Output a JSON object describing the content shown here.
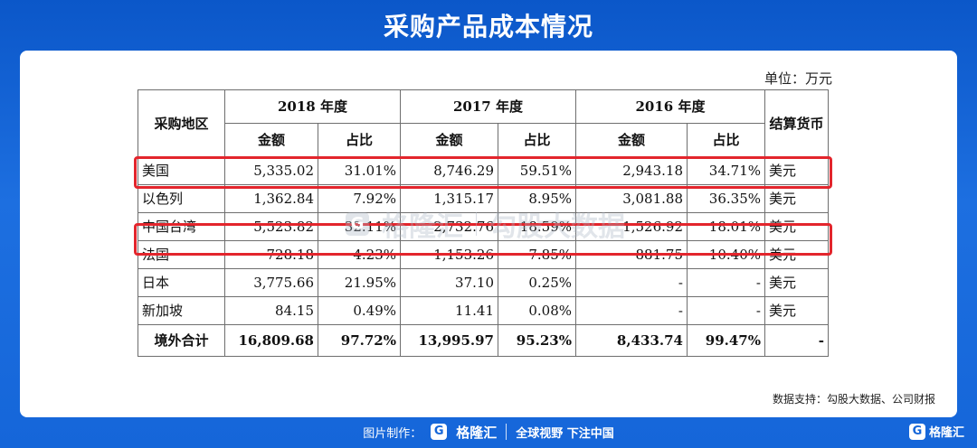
{
  "page": {
    "title": "采购产品成本情况"
  },
  "unit_label": "单位：万元",
  "table": {
    "header": {
      "region": "采购地区",
      "years": [
        "2018 年度",
        "2017 年度",
        "2016 年度"
      ],
      "amount": "金额",
      "share": "占比",
      "currency": "结算货币"
    },
    "rows": [
      {
        "region": "美国",
        "a2018": "5,335.02",
        "p2018": "31.01%",
        "a2017": "8,746.29",
        "p2017": "59.51%",
        "a2016": "2,943.18",
        "p2016": "34.71%",
        "currency": "美元"
      },
      {
        "region": "以色列",
        "a2018": "1,362.84",
        "p2018": "7.92%",
        "a2017": "1,315.17",
        "p2017": "8.95%",
        "a2016": "3,081.88",
        "p2016": "36.35%",
        "currency": "美元"
      },
      {
        "region": "中国台湾",
        "a2018": "5,523.82",
        "p2018": "32.11%",
        "a2017": "2,732.76",
        "p2017": "18.59%",
        "a2016": "1,526.92",
        "p2016": "18.01%",
        "currency": "美元"
      },
      {
        "region": "法国",
        "a2018": "728.18",
        "p2018": "4.23%",
        "a2017": "1,153.26",
        "p2017": "7.85%",
        "a2016": "881.75",
        "p2016": "10.40%",
        "currency": "美元"
      },
      {
        "region": "日本",
        "a2018": "3,775.66",
        "p2018": "21.95%",
        "a2017": "37.10",
        "p2017": "0.25%",
        "a2016": "-",
        "p2016": "-",
        "currency": "美元"
      },
      {
        "region": "新加坡",
        "a2018": "84.15",
        "p2018": "0.49%",
        "a2017": "11.41",
        "p2017": "0.08%",
        "a2016": "-",
        "p2016": "-",
        "currency": "美元"
      }
    ],
    "total": {
      "region": "境外合计",
      "a2018": "16,809.68",
      "p2018": "97.72%",
      "a2017": "13,995.97",
      "p2017": "95.23%",
      "a2016": "8,433.74",
      "p2016": "99.47%",
      "currency": "-"
    }
  },
  "highlight_color": "#e3252c",
  "watermark": {
    "brand": "格隆汇",
    "text": "勾股大数据"
  },
  "source_note": "数据支持：勾股大数据、公司财报",
  "footer": {
    "made_by": "图片制作：",
    "logo_glyph": "G",
    "brand": "格隆汇",
    "slogan": "全球视野 下注中国",
    "corner_brand": "格隆汇"
  }
}
